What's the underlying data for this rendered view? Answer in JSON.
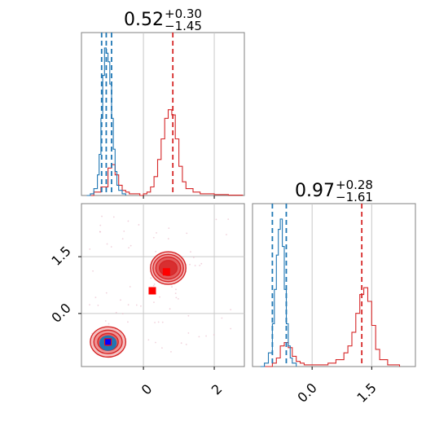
{
  "chart_data": [
    {
      "type": "histogram",
      "panel": "top-left",
      "param": 1,
      "title": {
        "median": "0.52",
        "plus": "+0.30",
        "minus": "−1.45"
      },
      "xlim": [
        -1.75,
        2.85
      ],
      "grid": true,
      "x_tick_values": [
        0,
        2
      ],
      "series": [
        {
          "color": "#d62728",
          "x": [
            -1.6,
            -1.4,
            -1.2,
            -1.0,
            -0.9,
            -0.8,
            -0.7,
            -0.6,
            -0.5,
            -0.4,
            -0.3,
            -0.2,
            -0.1,
            0.0,
            0.1,
            0.2,
            0.3,
            0.4,
            0.5,
            0.6,
            0.7,
            0.8,
            0.9,
            1.0,
            1.1,
            1.2,
            1.4,
            1.6,
            2.0,
            2.4,
            2.8
          ],
          "density": [
            0.0,
            0.02,
            0.05,
            0.16,
            0.18,
            0.12,
            0.06,
            0.03,
            0.02,
            0.01,
            0.01,
            0.01,
            0.0,
            0.01,
            0.02,
            0.05,
            0.11,
            0.21,
            0.33,
            0.45,
            0.5,
            0.47,
            0.33,
            0.17,
            0.08,
            0.04,
            0.02,
            0.01,
            0.005,
            0.002,
            0.0
          ],
          "quantiles": [
            0.83
          ]
        },
        {
          "color": "#1f77b4",
          "x": [
            -1.6,
            -1.5,
            -1.4,
            -1.3,
            -1.25,
            -1.2,
            -1.15,
            -1.1,
            -1.05,
            -1.0,
            -0.95,
            -0.9,
            -0.85,
            -0.8,
            -0.75,
            -0.7,
            -0.6,
            -0.5
          ],
          "density": [
            0.0,
            0.01,
            0.04,
            0.12,
            0.24,
            0.45,
            0.7,
            0.86,
            0.83,
            0.78,
            0.65,
            0.45,
            0.27,
            0.14,
            0.06,
            0.03,
            0.01,
            0.0
          ],
          "quantiles": [
            -1.18,
            -1.05,
            -0.9
          ]
        }
      ]
    },
    {
      "type": "histogram",
      "panel": "bottom-right",
      "param": 2,
      "title": {
        "median": "0.97",
        "plus": "+0.28",
        "minus": "−1.61"
      },
      "xlim": [
        -1.5,
        2.6
      ],
      "grid": true,
      "x_tick_labels": [
        "0.0",
        "1.5"
      ],
      "x_tick_values": [
        0.0,
        1.5
      ],
      "series": [
        {
          "color": "#d62728",
          "x": [
            -1.2,
            -1.0,
            -0.9,
            -0.8,
            -0.7,
            -0.6,
            -0.5,
            -0.4,
            -0.3,
            -0.2,
            -0.1,
            0.0,
            0.2,
            0.4,
            0.6,
            0.8,
            0.9,
            1.0,
            1.1,
            1.2,
            1.3,
            1.4,
            1.5,
            1.6,
            1.7,
            1.9,
            2.2
          ],
          "density": [
            0.0,
            0.02,
            0.05,
            0.12,
            0.14,
            0.11,
            0.06,
            0.03,
            0.02,
            0.01,
            0.01,
            0.01,
            0.01,
            0.02,
            0.04,
            0.08,
            0.12,
            0.2,
            0.31,
            0.42,
            0.46,
            0.38,
            0.24,
            0.1,
            0.04,
            0.01,
            0.0
          ],
          "quantiles": [
            1.25
          ]
        },
        {
          "color": "#1f77b4",
          "x": [
            -1.3,
            -1.2,
            -1.1,
            -1.0,
            -0.95,
            -0.9,
            -0.85,
            -0.8,
            -0.75,
            -0.7,
            -0.65,
            -0.6,
            -0.55,
            -0.5,
            -0.4
          ],
          "density": [
            0.0,
            0.02,
            0.08,
            0.25,
            0.45,
            0.65,
            0.8,
            0.86,
            0.7,
            0.45,
            0.25,
            0.12,
            0.05,
            0.02,
            0.0
          ],
          "quantiles": [
            -1.0,
            -0.65
          ]
        }
      ]
    },
    {
      "type": "scatter",
      "panel": "bottom-left",
      "xlim": [
        -1.75,
        2.85
      ],
      "ylim": [
        -1.4,
        2.9
      ],
      "grid": true,
      "x_tick_labels": [
        "0",
        "2"
      ],
      "x_tick_values": [
        0,
        2
      ],
      "y_tick_labels": [
        "0.0",
        "1.5"
      ],
      "y_tick_values": [
        0.0,
        1.5
      ],
      "contour_sets": [
        {
          "color": "#d62728",
          "center": [
            -1.0,
            -0.75
          ],
          "radii": [
            [
              0.38,
              0.3
            ],
            [
              0.58,
              0.45
            ],
            [
              0.8,
              0.62
            ],
            [
              1.0,
              0.8
            ]
          ]
        },
        {
          "color": "#d62728",
          "center": [
            0.7,
            1.2
          ],
          "radii": [
            [
              0.5,
              0.4
            ],
            [
              0.7,
              0.58
            ],
            [
              0.86,
              0.72
            ],
            [
              1.0,
              0.86
            ]
          ]
        },
        {
          "color": "#1f77b4",
          "center": [
            -1.0,
            -0.78
          ],
          "radii": [
            [
              0.25,
              0.2
            ],
            [
              0.35,
              0.28
            ],
            [
              0.44,
              0.36
            ]
          ]
        }
      ],
      "markers": [
        {
          "color": "#ff0000",
          "x": 0.65,
          "y": 1.1
        },
        {
          "color": "#ff0000",
          "x": 0.25,
          "y": 0.6
        },
        {
          "color": "#ff0000",
          "x": -1.0,
          "y": -0.75
        },
        {
          "color": "#0000ff",
          "x": -1.0,
          "y": -0.75
        }
      ]
    }
  ]
}
